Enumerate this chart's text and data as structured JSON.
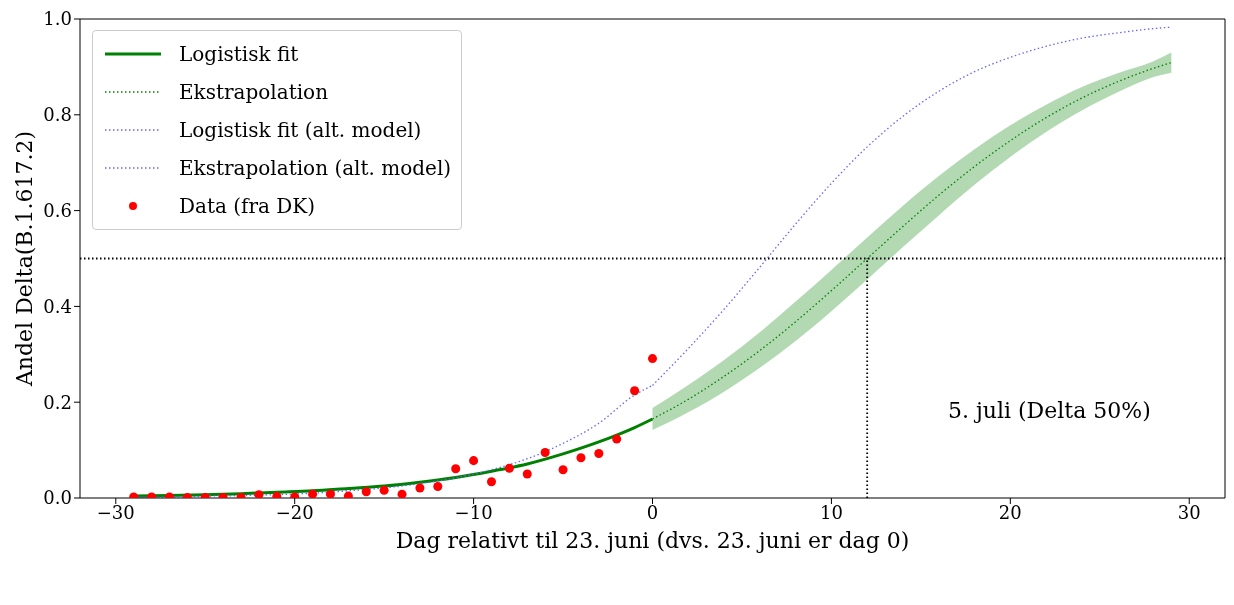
{
  "chart_data": {
    "type": "line",
    "xlabel": "Dag relativt til 23. juni (dvs. 23. juni er dag 0)",
    "ylabel": "Andel Delta(B.1.617.2)",
    "xlim": [
      -32,
      32
    ],
    "xticks": [
      -30,
      -20,
      -10,
      0,
      10,
      20,
      30
    ],
    "ylim": [
      0,
      1
    ],
    "yticks": [
      {
        "value": 0,
        "label": "0.0"
      },
      {
        "value": 0.2,
        "label": "0.2"
      },
      {
        "value": 0.4,
        "label": "0.4"
      },
      {
        "value": 0.6,
        "label": "0.6"
      },
      {
        "value": 0.8,
        "label": "0.8"
      },
      {
        "value": 1,
        "label": "1.0"
      }
    ],
    "legend": "top left",
    "annotations": [
      "5. juli (Delta 50%)"
    ],
    "ref_lines": [
      {
        "axis": "y",
        "value": 0.5,
        "color": "#000000",
        "line_style": "dotted"
      },
      {
        "axis": "x",
        "value": 12,
        "color": "#000000",
        "line_style": "dotted"
      }
    ],
    "series": [
      {
        "name": "Logistisk fit",
        "color": "#008000",
        "line_style": "solid",
        "x": [
          -29,
          -27,
          -25,
          -23,
          -21,
          -19,
          -17,
          -15,
          -13,
          -11,
          -9,
          -7,
          -5,
          -3,
          -1,
          0
        ],
        "values": [
          0.004,
          0.005,
          0.007,
          0.009,
          0.012,
          0.015,
          0.02,
          0.025,
          0.033,
          0.043,
          0.056,
          0.071,
          0.092,
          0.117,
          0.147,
          0.165
        ]
      },
      {
        "name": "Ekstrapolation",
        "color": "#008000",
        "line_style": "dotted",
        "x": [
          0,
          2,
          4,
          6,
          8,
          10,
          12,
          14,
          16,
          18,
          20,
          22,
          24,
          26,
          28,
          29
        ],
        "values": [
          0.165,
          0.206,
          0.254,
          0.308,
          0.368,
          0.433,
          0.5,
          0.567,
          0.632,
          0.692,
          0.746,
          0.794,
          0.835,
          0.869,
          0.897,
          0.909
        ],
        "lower": [
          0.142,
          0.179,
          0.222,
          0.272,
          0.328,
          0.39,
          0.456,
          0.524,
          0.59,
          0.654,
          0.712,
          0.764,
          0.809,
          0.847,
          0.879,
          0.888
        ],
        "upper": [
          0.188,
          0.236,
          0.288,
          0.346,
          0.41,
          0.476,
          0.544,
          0.61,
          0.672,
          0.728,
          0.778,
          0.821,
          0.858,
          0.887,
          0.912,
          0.93
        ]
      },
      {
        "name": "Logistisk fit (alt. model)",
        "color": "#6666ff",
        "line_style": "dotted",
        "x": [
          -29,
          -27,
          -25,
          -23,
          -21,
          -19,
          -17,
          -15,
          -13,
          -11,
          -9,
          -7,
          -5,
          -3,
          -1,
          0
        ],
        "values": [
          0.002,
          0.002,
          0.004,
          0.005,
          0.007,
          0.01,
          0.015,
          0.021,
          0.03,
          0.042,
          0.059,
          0.082,
          0.114,
          0.156,
          0.215,
          0.235
        ]
      },
      {
        "name": "Ekstrapolation (alt. model)",
        "color": "#6666ff",
        "line_style": "dotted",
        "x": [
          0,
          2,
          4,
          6,
          8,
          10,
          12,
          14,
          16,
          18,
          20,
          22,
          24,
          26,
          28,
          29
        ],
        "values": [
          0.235,
          0.312,
          0.394,
          0.482,
          0.572,
          0.657,
          0.733,
          0.797,
          0.849,
          0.89,
          0.92,
          0.943,
          0.96,
          0.971,
          0.98,
          0.983
        ]
      },
      {
        "name": "Data (fra DK)",
        "type": "scatter",
        "color": "#ff0000",
        "marker": "circle",
        "x": [
          -29,
          -28,
          -27,
          -26,
          -25,
          -24,
          -23,
          -22,
          -21,
          -20,
          -19,
          -18,
          -17,
          -16,
          -15,
          -14,
          -13,
          -12,
          -11,
          -10,
          -9,
          -8,
          -7,
          -6,
          -5,
          -4,
          -3,
          -2,
          -1,
          0
        ],
        "values": [
          0.002,
          0.002,
          0.002,
          0.001,
          0.001,
          0.001,
          0.001,
          0.007,
          0.003,
          0.002,
          0.008,
          0.008,
          0.004,
          0.013,
          0.016,
          0.008,
          0.021,
          0.024,
          0.061,
          0.078,
          0.034,
          0.062,
          0.05,
          0.095,
          0.059,
          0.084,
          0.093,
          0.123,
          0.224,
          0.291
        ]
      }
    ]
  }
}
